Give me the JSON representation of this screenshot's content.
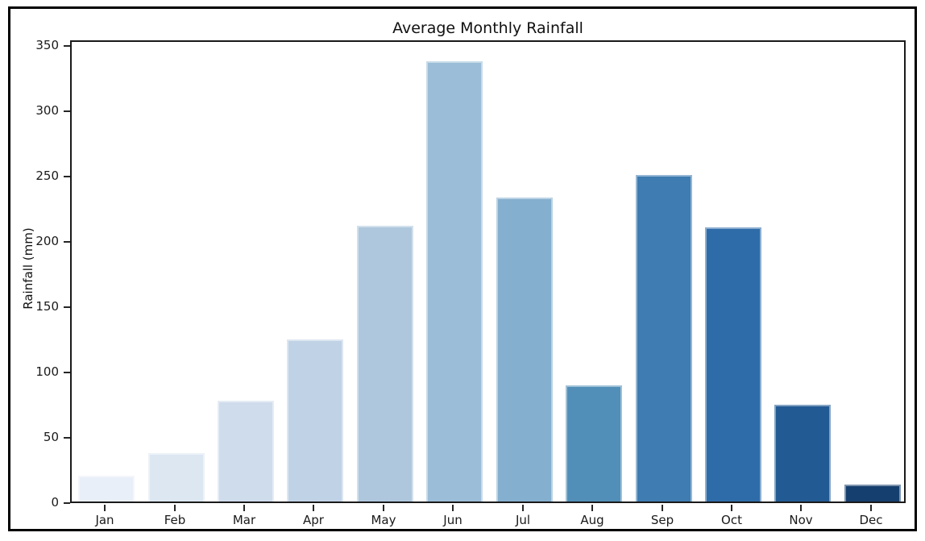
{
  "chart_data": {
    "type": "bar",
    "title": "Average Monthly Rainfall",
    "xlabel": "",
    "ylabel": "Rainfall (mm)",
    "categories": [
      "Jan",
      "Feb",
      "Mar",
      "Apr",
      "May",
      "Jun",
      "Jul",
      "Aug",
      "Sep",
      "Oct",
      "Nov",
      "Dec"
    ],
    "values": [
      20,
      37,
      77,
      124,
      211,
      337,
      233,
      89,
      250,
      210,
      74,
      13
    ],
    "bar_colors": [
      "#e9eff8",
      "#dce7f2",
      "#cfdcec",
      "#c0d2e6",
      "#aec7dd",
      "#9bbdd7",
      "#85afce",
      "#528fb8",
      "#3e7cb1",
      "#2e6ca9",
      "#225a93",
      "#153f6e"
    ],
    "yticks": [
      0,
      50,
      100,
      150,
      200,
      250,
      300,
      350
    ],
    "ylim": [
      0,
      354.3
    ],
    "grid": false,
    "legend": "none",
    "axis_color": "#1a1a1a",
    "frame_border_color": "#000000",
    "background_color": "#ffffff"
  }
}
